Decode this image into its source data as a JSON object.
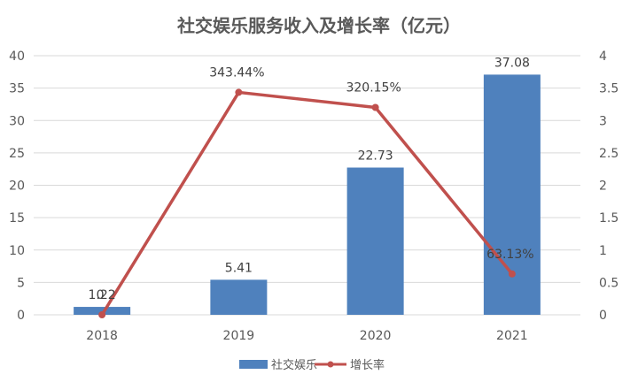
{
  "chart_data": {
    "type": "bar",
    "title": "社交娱乐服务收入及增长率（亿元）",
    "categories": [
      "2018",
      "2019",
      "2020",
      "2021"
    ],
    "y_left": {
      "ylim": [
        0,
        40
      ],
      "ticks": [
        "0",
        "5",
        "10",
        "15",
        "20",
        "25",
        "30",
        "35",
        "40"
      ]
    },
    "y_right": {
      "ylim": [
        0,
        4
      ],
      "ticks": [
        "0",
        "0.5",
        "1",
        "1.5",
        "2",
        "2.5",
        "3",
        "3.5",
        "4"
      ]
    },
    "series": [
      {
        "name": "社交娱乐",
        "type": "bar",
        "axis": "left",
        "values": [
          1.22,
          5.41,
          22.73,
          37.08
        ],
        "labels": [
          "1.22",
          "5.41",
          "22.73",
          "37.08"
        ],
        "color": "#4f81bd"
      },
      {
        "name": "增长率",
        "type": "line",
        "axis": "right",
        "values": [
          0,
          3.4344,
          3.2015,
          0.6313
        ],
        "labels": [
          "0",
          "343.44%",
          "320.15%",
          "63.13%"
        ],
        "color": "#c0504d"
      }
    ],
    "grid": true,
    "legend": "bottom"
  }
}
